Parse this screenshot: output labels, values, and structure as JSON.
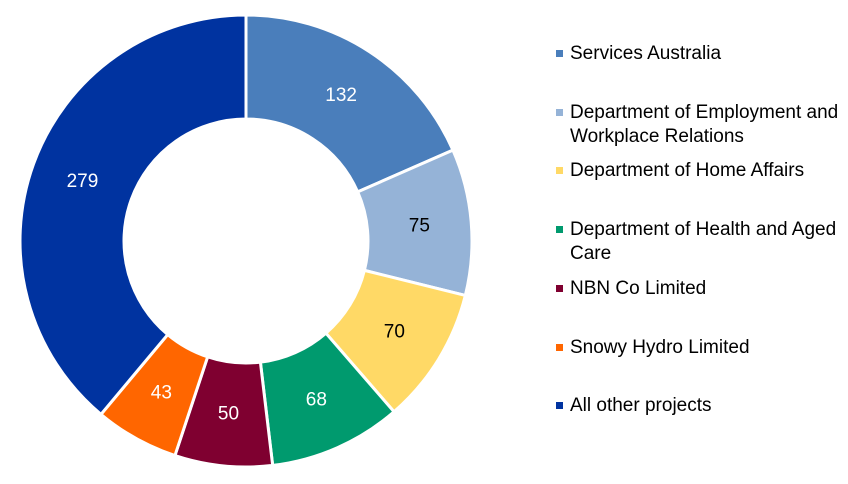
{
  "chart_data": {
    "type": "pie",
    "donut": true,
    "legend_position": "right",
    "series": [
      {
        "name": "Services Australia",
        "value": 132,
        "color": "#4a7ebb",
        "label_color": "#ffffff"
      },
      {
        "name": "Department of Employment and Workplace Relations",
        "value": 75,
        "color": "#95b3d7",
        "label_color": "#000000"
      },
      {
        "name": "Department of Home Affairs",
        "value": 70,
        "color": "#ffd966",
        "label_color": "#000000"
      },
      {
        "name": "Department of Health and Aged Care",
        "value": 68,
        "color": "#009a6e",
        "label_color": "#ffffff"
      },
      {
        "name": "NBN Co Limited",
        "value": 50,
        "color": "#7f0030",
        "label_color": "#ffffff"
      },
      {
        "name": "Snowy Hydro Limited",
        "value": 43,
        "color": "#ff6600",
        "label_color": "#ffffff"
      },
      {
        "name": "All other projects",
        "value": 279,
        "color": "#0033a0",
        "label_color": "#ffffff"
      }
    ]
  }
}
